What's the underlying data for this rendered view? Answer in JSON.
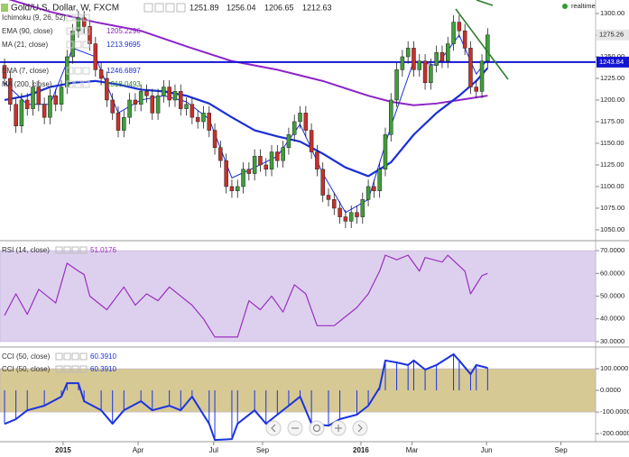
{
  "chart_data": [
    {
      "type": "candlestick",
      "title": "Gold/U.S. Dollar, W, FXCM",
      "header_values": [
        "1251.89",
        "1256.04",
        "1206.65",
        "1212.63"
      ],
      "status": "realtime",
      "open": [
        1240,
        1225,
        1195,
        1170,
        1200,
        1190,
        1215,
        1195,
        1180,
        1205,
        1195,
        1215,
        1250,
        1280,
        1295,
        1285,
        1265,
        1235,
        1225,
        1200,
        1185,
        1165,
        1180,
        1200,
        1195,
        1210,
        1205,
        1185,
        1205,
        1215,
        1200,
        1210,
        1190,
        1195,
        1180,
        1175,
        1185,
        1165,
        1145,
        1130,
        1100,
        1095,
        1100,
        1120,
        1115,
        1135,
        1125,
        1120,
        1140,
        1130,
        1145,
        1160,
        1175,
        1185,
        1165,
        1140,
        1120,
        1090,
        1085,
        1075,
        1065,
        1060,
        1070,
        1065,
        1085,
        1100,
        1095,
        1120,
        1160,
        1200,
        1235,
        1250,
        1260,
        1235,
        1245,
        1220,
        1240,
        1255,
        1245,
        1265,
        1290,
        1280,
        1260,
        1215,
        1210,
        1245
      ],
      "high": [
        1248,
        1233,
        1203,
        1208,
        1208,
        1223,
        1223,
        1203,
        1213,
        1213,
        1223,
        1258,
        1288,
        1303,
        1303,
        1293,
        1273,
        1243,
        1233,
        1208,
        1193,
        1188,
        1208,
        1208,
        1218,
        1218,
        1213,
        1213,
        1223,
        1223,
        1218,
        1218,
        1203,
        1203,
        1188,
        1193,
        1193,
        1173,
        1153,
        1138,
        1108,
        1108,
        1128,
        1128,
        1143,
        1143,
        1133,
        1148,
        1148,
        1153,
        1168,
        1183,
        1193,
        1193,
        1173,
        1148,
        1128,
        1098,
        1093,
        1083,
        1073,
        1078,
        1078,
        1093,
        1108,
        1108,
        1128,
        1168,
        1208,
        1243,
        1258,
        1268,
        1268,
        1253,
        1253,
        1248,
        1263,
        1263,
        1273,
        1298,
        1298,
        1288,
        1268,
        1223,
        1253,
        1283
      ],
      "low": [
        1217,
        1187,
        1162,
        1162,
        1182,
        1182,
        1187,
        1172,
        1172,
        1187,
        1187,
        1207,
        1242,
        1272,
        1277,
        1257,
        1227,
        1217,
        1192,
        1177,
        1157,
        1157,
        1172,
        1187,
        1187,
        1197,
        1177,
        1177,
        1197,
        1192,
        1192,
        1182,
        1182,
        1172,
        1167,
        1167,
        1157,
        1137,
        1122,
        1092,
        1087,
        1087,
        1092,
        1107,
        1107,
        1117,
        1112,
        1112,
        1122,
        1122,
        1137,
        1152,
        1167,
        1157,
        1132,
        1112,
        1082,
        1077,
        1067,
        1057,
        1052,
        1052,
        1057,
        1057,
        1077,
        1087,
        1087,
        1112,
        1152,
        1192,
        1227,
        1242,
        1227,
        1227,
        1212,
        1212,
        1232,
        1237,
        1237,
        1257,
        1272,
        1252,
        1207,
        1202,
        1202,
        1237
      ],
      "close": [
        1225,
        1195,
        1170,
        1200,
        1190,
        1215,
        1195,
        1180,
        1205,
        1195,
        1215,
        1250,
        1280,
        1295,
        1285,
        1265,
        1235,
        1225,
        1200,
        1185,
        1165,
        1180,
        1200,
        1195,
        1210,
        1205,
        1185,
        1205,
        1215,
        1200,
        1210,
        1190,
        1195,
        1180,
        1175,
        1185,
        1165,
        1145,
        1130,
        1100,
        1095,
        1100,
        1120,
        1115,
        1135,
        1125,
        1120,
        1140,
        1130,
        1145,
        1160,
        1175,
        1185,
        1165,
        1140,
        1120,
        1090,
        1085,
        1075,
        1065,
        1060,
        1070,
        1065,
        1085,
        1100,
        1095,
        1120,
        1160,
        1200,
        1235,
        1250,
        1260,
        1235,
        1245,
        1220,
        1240,
        1255,
        1245,
        1265,
        1290,
        1280,
        1260,
        1215,
        1210,
        1245,
        1275.26
      ],
      "up_color": "#3f9f3a",
      "down_color": "#c8302a",
      "indicators": [
        {
          "name": "Ichimoku (9, 26, 52)"
        },
        {
          "name": "MA (200, close)",
          "legend_value": "1318.0493",
          "color": "#2e8b2e"
        }
      ],
      "series": [
        {
          "name": "EMA (90, close)",
          "legend_value": "1205.2296",
          "color": "#8e24c8",
          "width": 2,
          "x": [
            0,
            8,
            16,
            24,
            32,
            40,
            48,
            56,
            64,
            68,
            72,
            76,
            80,
            85
          ],
          "values": [
            1318,
            1302,
            1290,
            1280,
            1262,
            1245,
            1235,
            1222,
            1205,
            1198,
            1194,
            1196,
            1200,
            1205
          ]
        },
        {
          "name": "MA (21, close)",
          "legend_value": "1213.9695",
          "color": "#1a2fd6",
          "width": 2.2,
          "x": [
            0,
            4,
            8,
            12,
            16,
            20,
            24,
            28,
            32,
            36,
            40,
            44,
            48,
            52,
            56,
            60,
            64,
            68,
            72,
            76,
            80,
            83,
            85
          ],
          "values": [
            1200,
            1205,
            1215,
            1220,
            1222,
            1218,
            1212,
            1210,
            1205,
            1196,
            1180,
            1165,
            1158,
            1152,
            1138,
            1122,
            1112,
            1128,
            1160,
            1185,
            1205,
            1222,
            1237
          ]
        },
        {
          "name": "EMA (7, close)",
          "legend_value": "1246.6897",
          "color": "#1a2fd6",
          "width": 1,
          "x": [
            0,
            4,
            8,
            12,
            16,
            20,
            24,
            28,
            32,
            36,
            40,
            44,
            48,
            52,
            56,
            60,
            64,
            68,
            72,
            76,
            80,
            83,
            85
          ],
          "values": [
            1220,
            1195,
            1195,
            1260,
            1250,
            1185,
            1200,
            1205,
            1198,
            1178,
            1110,
            1122,
            1135,
            1172,
            1115,
            1070,
            1085,
            1170,
            1245,
            1240,
            1275,
            1230,
            1247
          ]
        }
      ],
      "last_line": 1243.84,
      "last_line_color": "#1414d2",
      "xlim": [
        -0.8,
        104
      ],
      "ylim": [
        1038.5,
        1315.6
      ],
      "yticks": [
        {
          "value": 1300,
          "label": "1300.00"
        },
        {
          "value": 1275,
          "label": "1275.00"
        },
        {
          "value": 1250,
          "label": "1250.00"
        },
        {
          "value": 1225,
          "label": "1225.00"
        },
        {
          "value": 1200,
          "label": "1200.00"
        },
        {
          "value": 1175,
          "label": "1175.00"
        },
        {
          "value": 1150,
          "label": "1150.00"
        },
        {
          "value": 1125,
          "label": "1125.00"
        },
        {
          "value": 1100,
          "label": "1100.00"
        },
        {
          "value": 1075,
          "label": "1075.00"
        },
        {
          "value": 1050,
          "label": "1050.00"
        }
      ]
    },
    {
      "type": "line",
      "legend": [
        {
          "name": "RSI (14, close)",
          "value": "51.0176"
        }
      ],
      "color": "#9a2fc0",
      "band": [
        30,
        70
      ],
      "band_color": "#ddd0ee",
      "x": [
        0,
        2,
        4,
        6,
        9,
        11,
        13,
        14,
        15,
        18,
        21,
        23,
        25,
        27,
        29,
        33,
        35,
        37,
        41,
        43,
        45,
        47,
        49,
        51,
        53,
        55,
        58,
        60,
        62,
        64,
        66,
        67,
        69,
        71,
        73,
        74,
        77,
        78,
        81,
        82,
        84,
        85
      ],
      "values": [
        41.5,
        51,
        42,
        53,
        47,
        64.5,
        61,
        59.5,
        50,
        44,
        54,
        46,
        51,
        48,
        54,
        46,
        40,
        32,
        32,
        48,
        44,
        50,
        43,
        55,
        51,
        37,
        37,
        41,
        45,
        51,
        61,
        68,
        66,
        68,
        61,
        67,
        65,
        68,
        61,
        51,
        59,
        60
      ],
      "xlim": [
        -0.8,
        104
      ],
      "ylim": [
        28,
        74
      ],
      "yticks": [
        {
          "value": 70,
          "label": "70.0000"
        },
        {
          "value": 60,
          "label": "60.0000"
        },
        {
          "value": 50,
          "label": "50.0000"
        },
        {
          "value": 40,
          "label": "40.0000"
        },
        {
          "value": 30,
          "label": "30.0000"
        }
      ]
    },
    {
      "type": "line",
      "histogram": true,
      "legend": [
        {
          "name": "CCI (50, close)",
          "value": "60.3910"
        },
        {
          "name": "CCI (50, close)",
          "value": "60.3910"
        }
      ],
      "color": "#1c33e0",
      "band": [
        -100,
        100
      ],
      "band_color": "#d6c994",
      "x": [
        0,
        2,
        4,
        7,
        10,
        11,
        13,
        14,
        17,
        19,
        21,
        24,
        26,
        29,
        31,
        33,
        36,
        37,
        40,
        41,
        44,
        46,
        48,
        50,
        52,
        54,
        57,
        59,
        62,
        64,
        66,
        67,
        69,
        71,
        72,
        74,
        76,
        79,
        80,
        82,
        83,
        85
      ],
      "values": [
        -155,
        -133,
        -92,
        -71,
        -29,
        33,
        33,
        -50,
        -92,
        -154,
        -92,
        -50,
        -92,
        -71,
        -92,
        -29,
        -154,
        -229,
        -225,
        -154,
        -92,
        -154,
        -112,
        -71,
        -29,
        -154,
        -163,
        -133,
        -112,
        -71,
        13,
        138,
        129,
        117,
        138,
        96,
        117,
        167,
        138,
        75,
        117,
        104
      ],
      "xlim": [
        -0.8,
        104
      ],
      "ylim": [
        -237,
        196
      ],
      "yticks": [
        {
          "value": 100,
          "label": "100.0000"
        },
        {
          "value": 0,
          "label": "0.0000"
        },
        {
          "value": -100,
          "label": "-100.0000"
        },
        {
          "value": -200,
          "label": "-200.0000"
        }
      ],
      "xticks": [
        {
          "value": 10.3,
          "label": "2015"
        },
        {
          "value": 23.5,
          "label": "Apr"
        },
        {
          "value": 36.8,
          "label": "Jul"
        },
        {
          "value": 45.4,
          "label": "Sep"
        },
        {
          "value": 62.7,
          "label": "2016"
        },
        {
          "value": 71.7,
          "label": "Mar"
        },
        {
          "value": 84.8,
          "label": "Jun"
        },
        {
          "value": 97.9,
          "label": "Sep"
        }
      ]
    }
  ]
}
